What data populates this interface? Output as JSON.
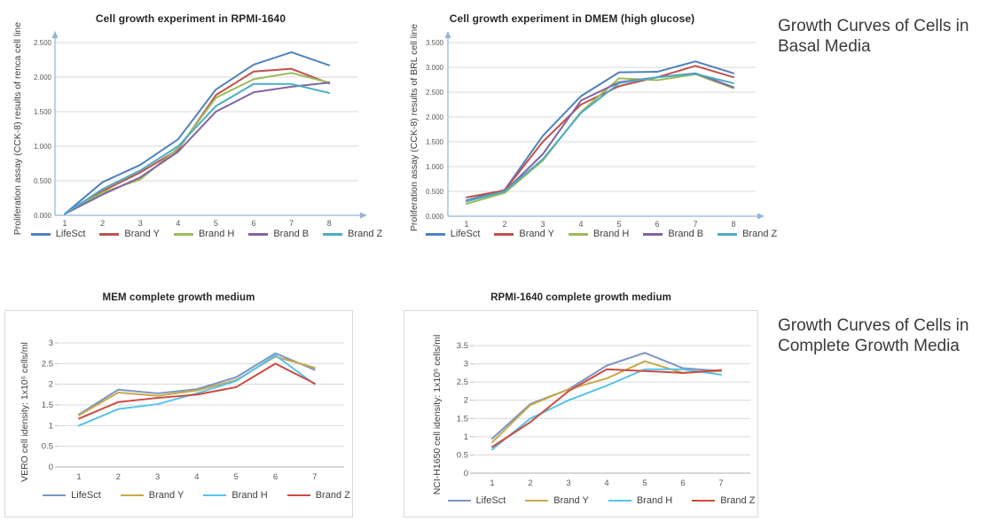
{
  "annotations": [
    {
      "lines": [
        "Growth Curves of Cells in",
        "Basal Media"
      ]
    },
    {
      "lines": [
        "Growth Curves of Cells in",
        "Complete Growth Media"
      ]
    }
  ],
  "chart_data": [
    {
      "type": "line",
      "title": "Cell growth experiment in RPMI-1640",
      "xlabel": "",
      "ylabel": "Proliferation assay (CCK-8) results of renca cell line",
      "categories": [
        "1",
        "2",
        "3",
        "4",
        "5",
        "6",
        "7",
        "8"
      ],
      "ylim": [
        0,
        2.5
      ],
      "yticks": [
        "0.000",
        "0.500",
        "1.000",
        "1.500",
        "2.000",
        "2.500"
      ],
      "grid": true,
      "legend_position": "bottom",
      "series": [
        {
          "name": "LifeSct",
          "color": "#4F81BD",
          "values": [
            0.02,
            0.48,
            0.73,
            1.1,
            1.82,
            2.18,
            2.36,
            2.17
          ]
        },
        {
          "name": "Brand Y",
          "color": "#C0504D",
          "values": [
            0.02,
            0.35,
            0.62,
            0.95,
            1.74,
            2.08,
            2.12,
            1.91
          ]
        },
        {
          "name": "Brand H",
          "color": "#9BBB59",
          "values": [
            0.02,
            0.33,
            0.52,
            0.97,
            1.7,
            1.97,
            2.06,
            1.92
          ]
        },
        {
          "name": "Brand B",
          "color": "#8064A2",
          "values": [
            0.02,
            0.3,
            0.55,
            0.92,
            1.5,
            1.78,
            1.86,
            1.92
          ]
        },
        {
          "name": "Brand Z",
          "color": "#4BACC6",
          "values": [
            0.02,
            0.38,
            0.65,
            1.0,
            1.58,
            1.9,
            1.9,
            1.77
          ]
        }
      ]
    },
    {
      "type": "line",
      "title": "Cell growth experiment in DMEM (high glucose)",
      "xlabel": "",
      "ylabel": "Proliferation assay (CCK-8) results of BRL cell line",
      "categories": [
        "1",
        "2",
        "3",
        "4",
        "5",
        "6",
        "7",
        "8"
      ],
      "ylim": [
        0,
        3.5
      ],
      "yticks": [
        "0.000",
        "0.500",
        "1.000",
        "1.500",
        "2.000",
        "2.500",
        "3.000",
        "3.500"
      ],
      "grid": true,
      "legend_position": "bottom",
      "series": [
        {
          "name": "LifeSct",
          "color": "#4F81BD",
          "values": [
            0.32,
            0.53,
            1.62,
            2.42,
            2.9,
            2.91,
            3.12,
            2.88
          ]
        },
        {
          "name": "Brand Y",
          "color": "#C0504D",
          "values": [
            0.38,
            0.52,
            1.5,
            2.25,
            2.62,
            2.8,
            3.03,
            2.8
          ]
        },
        {
          "name": "Brand H",
          "color": "#9BBB59",
          "values": [
            0.25,
            0.47,
            1.12,
            2.1,
            2.78,
            2.74,
            2.86,
            2.58
          ]
        },
        {
          "name": "Brand B",
          "color": "#8064A2",
          "values": [
            0.3,
            0.5,
            1.25,
            2.33,
            2.7,
            2.8,
            2.88,
            2.6
          ]
        },
        {
          "name": "Brand Z",
          "color": "#4BACC6",
          "values": [
            0.3,
            0.5,
            1.15,
            2.08,
            2.68,
            2.8,
            2.87,
            2.68
          ]
        }
      ]
    },
    {
      "type": "line",
      "title": "MEM complete growth medium",
      "xlabel": "",
      "ylabel": "VERO cell idensity: 1x10⁶ cells/ml",
      "categories": [
        "1",
        "2",
        "3",
        "4",
        "5",
        "6",
        "7"
      ],
      "ylim": [
        0,
        3
      ],
      "yticks": [
        "0",
        "0.5",
        "1",
        "1.5",
        "2",
        "2.5",
        "3"
      ],
      "grid": true,
      "legend_position": "bottom",
      "series": [
        {
          "name": "LifeSct",
          "color": "#7B96C2",
          "values": [
            1.27,
            1.87,
            1.78,
            1.88,
            2.17,
            2.75,
            2.35
          ]
        },
        {
          "name": "Brand Y",
          "color": "#C9A84C",
          "values": [
            1.25,
            1.8,
            1.72,
            1.85,
            2.1,
            2.67,
            2.4
          ]
        },
        {
          "name": "Brand H",
          "color": "#55C3EA",
          "values": [
            1.0,
            1.4,
            1.52,
            1.78,
            2.08,
            2.7,
            2.0
          ]
        },
        {
          "name": "Brand Z",
          "color": "#CC4B42",
          "values": [
            1.17,
            1.57,
            1.67,
            1.75,
            1.93,
            2.5,
            2.02
          ]
        }
      ]
    },
    {
      "type": "line",
      "title": "RPMI-1640 complete growth medium",
      "xlabel": "",
      "ylabel": "NCI-H1650 cell idensity: 1x10⁶ cells/ml",
      "categories": [
        "1",
        "2",
        "3",
        "4",
        "5",
        "6",
        "7"
      ],
      "ylim": [
        0,
        3.5
      ],
      "yticks": [
        "0",
        "0.5",
        "1",
        "1.5",
        "2",
        "2.5",
        "3",
        "3.5"
      ],
      "grid": true,
      "legend_position": "bottom",
      "series": [
        {
          "name": "LifeSct",
          "color": "#7B96C2",
          "values": [
            0.95,
            1.9,
            2.3,
            2.95,
            3.3,
            2.88,
            2.8
          ]
        },
        {
          "name": "Brand Y",
          "color": "#C9A84C",
          "values": [
            0.85,
            1.87,
            2.3,
            2.6,
            3.07,
            2.75,
            2.8
          ]
        },
        {
          "name": "Brand H",
          "color": "#55C3EA",
          "values": [
            0.65,
            1.5,
            2.0,
            2.4,
            2.85,
            2.85,
            2.7
          ]
        },
        {
          "name": "Brand Z",
          "color": "#CC4B42",
          "values": [
            0.72,
            1.4,
            2.25,
            2.85,
            2.8,
            2.75,
            2.83
          ]
        }
      ]
    }
  ]
}
